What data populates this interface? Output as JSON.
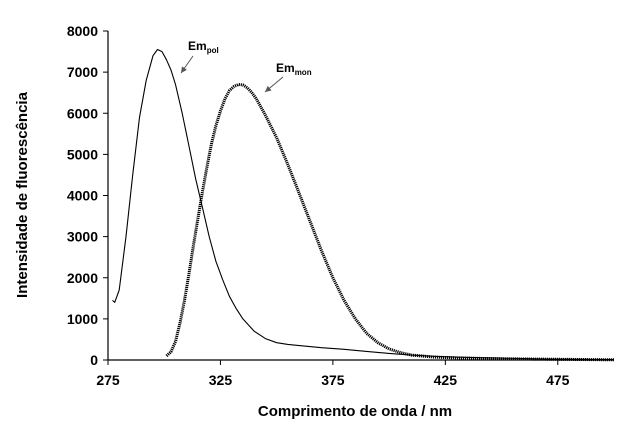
{
  "chart_data": {
    "type": "line",
    "title": "",
    "xlabel": "Comprimento de onda / nm",
    "ylabel": "Intensidade de fluorescência",
    "xlim": [
      275,
      500
    ],
    "ylim": [
      0,
      8000
    ],
    "x_ticks": [
      275,
      325,
      375,
      425,
      475
    ],
    "y_ticks": [
      0,
      1000,
      2000,
      3000,
      4000,
      5000,
      6000,
      7000,
      8000
    ],
    "grid": false,
    "legend": "none",
    "series": [
      {
        "color": "#000000",
        "style": "solid",
        "x": [
          277,
          278,
          280,
          283,
          286,
          289,
          292,
          295,
          297,
          299,
          301,
          303,
          305,
          308,
          311,
          314,
          317,
          320,
          323,
          326,
          329,
          332,
          335,
          340,
          345,
          350,
          355,
          360,
          370,
          380,
          390,
          400,
          410,
          420,
          430,
          440,
          450,
          460,
          470,
          480,
          490,
          500
        ],
        "y": [
          1450,
          1400,
          1700,
          3000,
          4500,
          5900,
          6800,
          7400,
          7550,
          7500,
          7300,
          7050,
          6700,
          6000,
          5200,
          4400,
          3700,
          3000,
          2400,
          1950,
          1550,
          1250,
          1000,
          700,
          520,
          420,
          380,
          350,
          300,
          260,
          210,
          160,
          120,
          90,
          70,
          55,
          45,
          35,
          25,
          20,
          15,
          10
        ]
      },
      {
        "color": "#000000",
        "style": "dotted",
        "x": [
          301,
          303,
          305,
          307,
          309,
          311,
          313,
          315,
          317,
          319,
          321,
          323,
          325,
          327,
          329,
          331,
          333,
          335,
          337,
          339,
          341,
          343,
          345,
          350,
          355,
          360,
          365,
          370,
          375,
          380,
          385,
          390,
          395,
          400,
          405,
          410,
          420,
          430,
          440,
          450,
          460,
          470,
          480,
          490,
          500
        ],
        "y": [
          100,
          200,
          450,
          900,
          1450,
          2100,
          2800,
          3450,
          4100,
          4700,
          5250,
          5700,
          6050,
          6350,
          6550,
          6650,
          6700,
          6690,
          6620,
          6500,
          6350,
          6150,
          5950,
          5400,
          4750,
          4050,
          3350,
          2650,
          2000,
          1450,
          1000,
          650,
          420,
          270,
          180,
          120,
          70,
          50,
          40,
          30,
          25,
          20,
          15,
          10,
          5
        ]
      }
    ],
    "annotations": [
      {
        "label": "Em",
        "sub": "pol",
        "target_x": 297,
        "target_y": 7400
      },
      {
        "label": "Em",
        "sub": "mon",
        "target_x": 340,
        "target_y": 6300
      }
    ]
  }
}
